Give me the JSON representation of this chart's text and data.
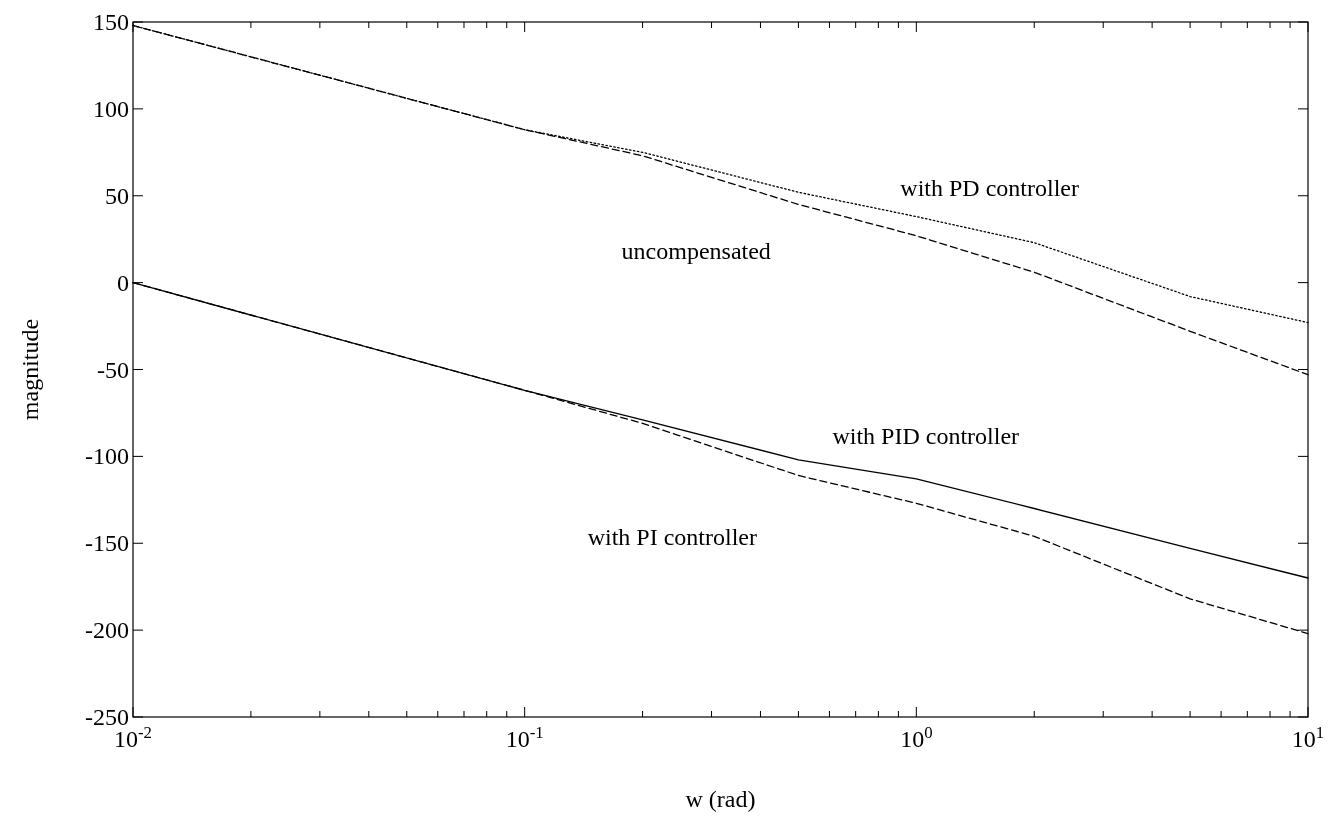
{
  "chart_data": {
    "type": "line",
    "xlabel": "w (rad)",
    "ylabel": "magnitude",
    "log": "x",
    "grid": false,
    "legend": false,
    "xlim": [
      0.01,
      10
    ],
    "ylim": [
      -250,
      150
    ],
    "xticks": [
      {
        "value": 0.01,
        "label": "10$^{-2}$"
      },
      {
        "value": 0.02,
        "label": null
      },
      {
        "value": 0.03,
        "label": null
      },
      {
        "value": 0.04,
        "label": null
      },
      {
        "value": 0.05,
        "label": null
      },
      {
        "value": 0.06,
        "label": null
      },
      {
        "value": 0.07,
        "label": null
      },
      {
        "value": 0.08,
        "label": null
      },
      {
        "value": 0.09,
        "label": null
      },
      {
        "value": 0.1,
        "label": "10$^{-1}$"
      },
      {
        "value": 0.2,
        "label": null
      },
      {
        "value": 0.3,
        "label": null
      },
      {
        "value": 0.4,
        "label": null
      },
      {
        "value": 0.5,
        "label": null
      },
      {
        "value": 0.6,
        "label": null
      },
      {
        "value": 0.7,
        "label": null
      },
      {
        "value": 0.8,
        "label": null
      },
      {
        "value": 0.9,
        "label": null
      },
      {
        "value": 1,
        "label": "10$^{0}$"
      },
      {
        "value": 2,
        "label": null
      },
      {
        "value": 3,
        "label": null
      },
      {
        "value": 4,
        "label": null
      },
      {
        "value": 5,
        "label": null
      },
      {
        "value": 6,
        "label": null
      },
      {
        "value": 7,
        "label": null
      },
      {
        "value": 8,
        "label": null
      },
      {
        "value": 9,
        "label": null
      },
      {
        "value": 10,
        "label": "10$^{1}$"
      }
    ],
    "yticks": [
      -250,
      -200,
      -150,
      -100,
      -50,
      0,
      50,
      100,
      150
    ],
    "x": [
      0.01,
      0.1,
      0.2,
      0.5,
      1,
      2,
      5,
      10
    ],
    "series": [
      {
        "name": "uncompensated",
        "color": "#000000",
        "line_style": "dashed",
        "values": [
          148,
          88,
          73,
          45,
          27,
          6,
          -28,
          -53
        ]
      },
      {
        "name": "with PD controller",
        "color": "#000000",
        "line_style": "dotted",
        "values": [
          148,
          88,
          75,
          52,
          38,
          23,
          -8,
          -23
        ]
      },
      {
        "name": "with PID controller",
        "color": "#000000",
        "line_style": "solid",
        "values": [
          0,
          -62,
          -79,
          -102,
          -113,
          -130,
          -153,
          -170
        ]
      },
      {
        "name": "with PI controller",
        "color": "#000000",
        "line_style": "dashed",
        "values": [
          0,
          -62,
          -81,
          -111,
          -127,
          -146,
          -182,
          -202
        ]
      }
    ]
  }
}
